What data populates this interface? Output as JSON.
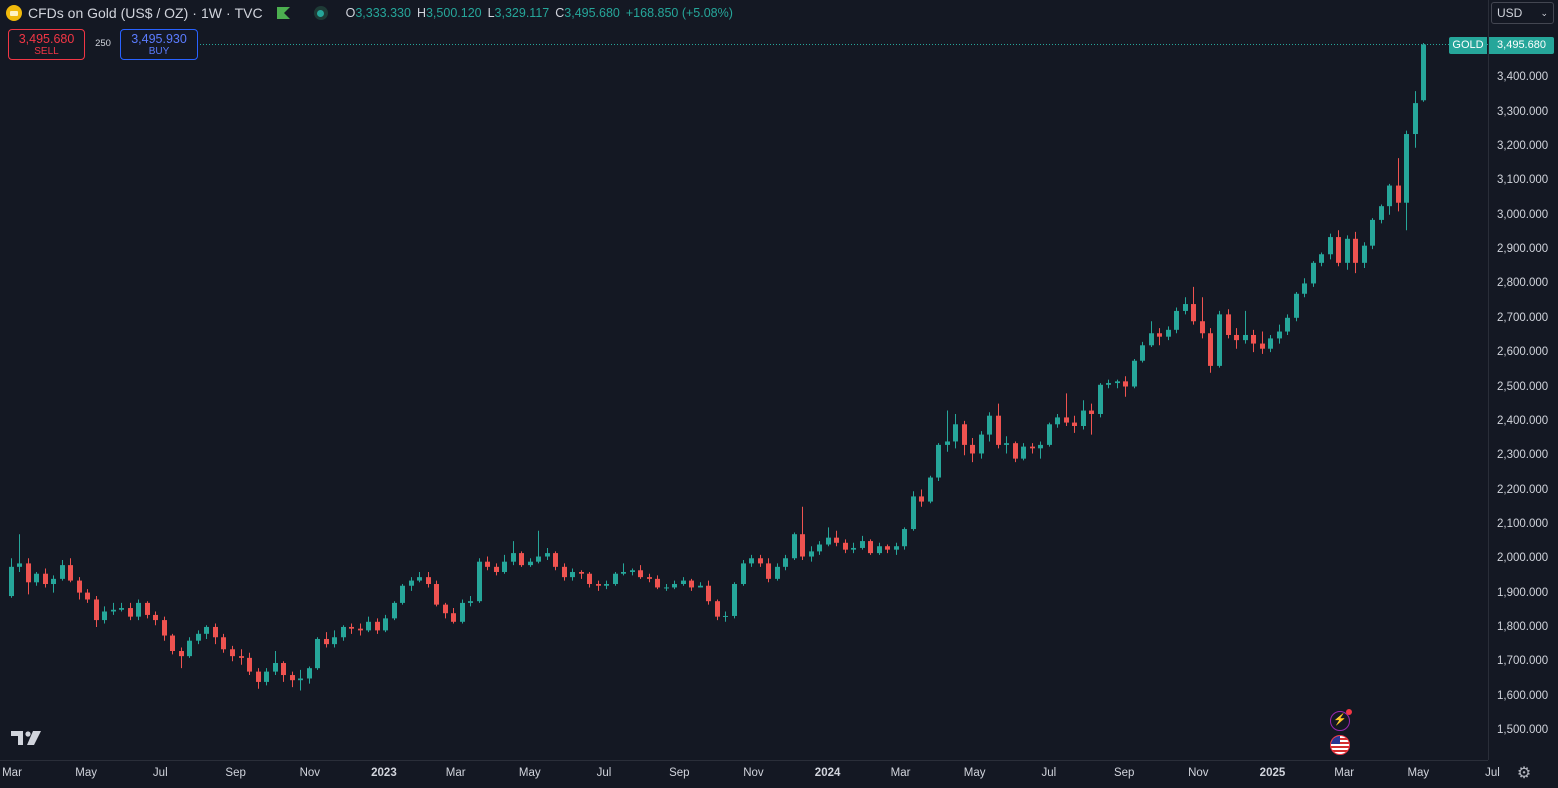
{
  "legend": {
    "title": "CFDs on Gold (US$ / OZ)",
    "interval": "1W",
    "exchange": "TVC",
    "open_label": "O",
    "open": "3,333.330",
    "high_label": "H",
    "high": "3,500.120",
    "low_label": "L",
    "low": "3,329.117",
    "close_label": "C",
    "close": "3,495.680",
    "change": "+168.850 (+5.08%)"
  },
  "trade": {
    "sell_price": "3,495.680",
    "sell_label": "SELL",
    "spread": "250",
    "buy_price": "3,495.930",
    "buy_label": "BUY"
  },
  "currency": "USD",
  "symbol_tag": "GOLD",
  "last_price": "3,495.680",
  "icons": [
    "gold-coin-icon",
    "green-flag-icon",
    "market-open-dot-icon",
    "tradingview-logo",
    "flash-event-icon",
    "us-flag-icon",
    "gear-icon",
    "chevron-down-icon"
  ],
  "colors": {
    "up": "#26a69a",
    "down": "#ef5350",
    "background": "#141823",
    "grid": "#2a2e39",
    "text": "#d1d4dc"
  },
  "chart_data": {
    "type": "candlestick",
    "title": "CFDs on Gold (US$ / OZ)",
    "interval": "1W",
    "ylim": [
      1400,
      3520
    ],
    "y_ticks": [
      "1,500.000",
      "1,600.000",
      "1,700.000",
      "1,800.000",
      "1,900.000",
      "2,000.000",
      "2,100.000",
      "2,200.000",
      "2,300.000",
      "2,400.000",
      "2,500.000",
      "2,600.000",
      "2,700.000",
      "2,800.000",
      "2,900.000",
      "3,000.000",
      "3,100.000",
      "3,200.000",
      "3,300.000",
      "3,400.000"
    ],
    "x_ticks": [
      {
        "label": "Mar",
        "date": "2022-03-01",
        "year": false
      },
      {
        "label": "May",
        "date": "2022-05-01",
        "year": false
      },
      {
        "label": "Jul",
        "date": "2022-07-01",
        "year": false
      },
      {
        "label": "Sep",
        "date": "2022-09-01",
        "year": false
      },
      {
        "label": "Nov",
        "date": "2022-11-01",
        "year": false
      },
      {
        "label": "2023",
        "date": "2023-01-01",
        "year": true
      },
      {
        "label": "Mar",
        "date": "2023-03-01",
        "year": false
      },
      {
        "label": "May",
        "date": "2023-05-01",
        "year": false
      },
      {
        "label": "Jul",
        "date": "2023-07-01",
        "year": false
      },
      {
        "label": "Sep",
        "date": "2023-09-01",
        "year": false
      },
      {
        "label": "Nov",
        "date": "2023-11-01",
        "year": false
      },
      {
        "label": "2024",
        "date": "2024-01-01",
        "year": true
      },
      {
        "label": "Mar",
        "date": "2024-03-01",
        "year": false
      },
      {
        "label": "May",
        "date": "2024-05-01",
        "year": false
      },
      {
        "label": "Jul",
        "date": "2024-07-01",
        "year": false
      },
      {
        "label": "Sep",
        "date": "2024-09-01",
        "year": false
      },
      {
        "label": "Nov",
        "date": "2024-11-01",
        "year": false
      },
      {
        "label": "2025",
        "date": "2025-01-01",
        "year": true
      },
      {
        "label": "Mar",
        "date": "2025-03-01",
        "year": false
      },
      {
        "label": "May",
        "date": "2025-05-01",
        "year": false
      },
      {
        "label": "Jul",
        "date": "2025-07-01",
        "year": false
      }
    ],
    "first_week": "2022-02-28",
    "candles": [
      [
        1890,
        1975,
        2000,
        1885
      ],
      [
        1975,
        1985,
        2070,
        1960
      ],
      [
        1985,
        1930,
        2000,
        1895
      ],
      [
        1930,
        1955,
        1960,
        1920
      ],
      [
        1955,
        1925,
        1970,
        1915
      ],
      [
        1925,
        1940,
        1950,
        1900
      ],
      [
        1940,
        1980,
        1995,
        1935
      ],
      [
        1980,
        1935,
        2000,
        1930
      ],
      [
        1935,
        1900,
        1945,
        1880
      ],
      [
        1900,
        1880,
        1910,
        1870
      ],
      [
        1880,
        1820,
        1890,
        1800
      ],
      [
        1820,
        1845,
        1860,
        1810
      ],
      [
        1845,
        1850,
        1870,
        1835
      ],
      [
        1850,
        1855,
        1870,
        1845
      ],
      [
        1855,
        1830,
        1870,
        1820
      ],
      [
        1830,
        1870,
        1880,
        1820
      ],
      [
        1870,
        1835,
        1875,
        1825
      ],
      [
        1835,
        1820,
        1845,
        1805
      ],
      [
        1820,
        1775,
        1830,
        1760
      ],
      [
        1775,
        1730,
        1780,
        1720
      ],
      [
        1730,
        1715,
        1740,
        1680
      ],
      [
        1715,
        1760,
        1770,
        1710
      ],
      [
        1760,
        1780,
        1790,
        1750
      ],
      [
        1780,
        1800,
        1805,
        1765
      ],
      [
        1800,
        1770,
        1810,
        1750
      ],
      [
        1770,
        1735,
        1780,
        1725
      ],
      [
        1735,
        1715,
        1745,
        1700
      ],
      [
        1715,
        1710,
        1735,
        1690
      ],
      [
        1710,
        1670,
        1725,
        1660
      ],
      [
        1670,
        1640,
        1680,
        1620
      ],
      [
        1640,
        1670,
        1680,
        1630
      ],
      [
        1670,
        1695,
        1730,
        1660
      ],
      [
        1695,
        1660,
        1700,
        1640
      ],
      [
        1660,
        1645,
        1670,
        1625
      ],
      [
        1645,
        1650,
        1675,
        1615
      ],
      [
        1650,
        1680,
        1685,
        1635
      ],
      [
        1680,
        1765,
        1770,
        1675
      ],
      [
        1765,
        1750,
        1785,
        1740
      ],
      [
        1750,
        1770,
        1790,
        1740
      ],
      [
        1770,
        1800,
        1805,
        1760
      ],
      [
        1800,
        1795,
        1810,
        1780
      ],
      [
        1795,
        1790,
        1810,
        1775
      ],
      [
        1790,
        1815,
        1830,
        1785
      ],
      [
        1815,
        1790,
        1825,
        1780
      ],
      [
        1790,
        1825,
        1835,
        1785
      ],
      [
        1825,
        1870,
        1875,
        1820
      ],
      [
        1870,
        1920,
        1925,
        1865
      ],
      [
        1920,
        1935,
        1945,
        1905
      ],
      [
        1935,
        1945,
        1960,
        1930
      ],
      [
        1945,
        1925,
        1960,
        1915
      ],
      [
        1925,
        1865,
        1935,
        1860
      ],
      [
        1865,
        1840,
        1870,
        1825
      ],
      [
        1840,
        1815,
        1855,
        1810
      ],
      [
        1815,
        1870,
        1880,
        1810
      ],
      [
        1870,
        1875,
        1890,
        1860
      ],
      [
        1875,
        1990,
        2000,
        1870
      ],
      [
        1990,
        1975,
        2005,
        1965
      ],
      [
        1975,
        1960,
        1985,
        1950
      ],
      [
        1960,
        1990,
        2010,
        1955
      ],
      [
        1990,
        2015,
        2050,
        1980
      ],
      [
        2015,
        1980,
        2020,
        1975
      ],
      [
        1980,
        1990,
        2000,
        1975
      ],
      [
        1990,
        2005,
        2080,
        1985
      ],
      [
        2005,
        2015,
        2030,
        1995
      ],
      [
        2015,
        1975,
        2020,
        1965
      ],
      [
        1975,
        1945,
        1985,
        1935
      ],
      [
        1945,
        1960,
        1970,
        1935
      ],
      [
        1960,
        1955,
        1965,
        1940
      ],
      [
        1955,
        1925,
        1960,
        1915
      ],
      [
        1925,
        1920,
        1935,
        1905
      ],
      [
        1920,
        1925,
        1935,
        1910
      ],
      [
        1925,
        1955,
        1960,
        1920
      ],
      [
        1955,
        1960,
        1985,
        1950
      ],
      [
        1960,
        1965,
        1970,
        1950
      ],
      [
        1965,
        1945,
        1980,
        1940
      ],
      [
        1945,
        1940,
        1955,
        1930
      ],
      [
        1940,
        1915,
        1950,
        1910
      ],
      [
        1915,
        1915,
        1925,
        1905
      ],
      [
        1915,
        1925,
        1935,
        1910
      ],
      [
        1925,
        1935,
        1945,
        1920
      ],
      [
        1935,
        1915,
        1940,
        1905
      ],
      [
        1915,
        1920,
        1930,
        1915
      ],
      [
        1920,
        1875,
        1935,
        1865
      ],
      [
        1875,
        1830,
        1880,
        1820
      ],
      [
        1830,
        1832,
        1845,
        1815
      ],
      [
        1832,
        1925,
        1930,
        1825
      ],
      [
        1925,
        1985,
        1995,
        1920
      ],
      [
        1985,
        2000,
        2010,
        1975
      ],
      [
        2000,
        1985,
        2010,
        1975
      ],
      [
        1985,
        1940,
        2000,
        1930
      ],
      [
        1940,
        1975,
        1985,
        1935
      ],
      [
        1975,
        2000,
        2010,
        1965
      ],
      [
        2000,
        2070,
        2075,
        1995
      ],
      [
        2070,
        2005,
        2150,
        1995
      ],
      [
        2005,
        2020,
        2035,
        1990
      ],
      [
        2020,
        2040,
        2050,
        2010
      ],
      [
        2040,
        2060,
        2090,
        2035
      ],
      [
        2060,
        2045,
        2080,
        2035
      ],
      [
        2045,
        2025,
        2055,
        2015
      ],
      [
        2025,
        2030,
        2045,
        2015
      ],
      [
        2030,
        2050,
        2065,
        2025
      ],
      [
        2050,
        2015,
        2055,
        2010
      ],
      [
        2015,
        2035,
        2045,
        2010
      ],
      [
        2035,
        2025,
        2040,
        2015
      ],
      [
        2025,
        2035,
        2045,
        2010
      ],
      [
        2035,
        2085,
        2090,
        2025
      ],
      [
        2085,
        2180,
        2195,
        2080
      ],
      [
        2180,
        2165,
        2200,
        2150
      ],
      [
        2165,
        2235,
        2240,
        2160
      ],
      [
        2235,
        2330,
        2335,
        2225
      ],
      [
        2330,
        2340,
        2430,
        2310
      ],
      [
        2340,
        2390,
        2420,
        2320
      ],
      [
        2390,
        2330,
        2400,
        2300
      ],
      [
        2330,
        2305,
        2350,
        2280
      ],
      [
        2305,
        2360,
        2370,
        2290
      ],
      [
        2360,
        2415,
        2425,
        2340
      ],
      [
        2415,
        2330,
        2450,
        2320
      ],
      [
        2330,
        2335,
        2355,
        2305
      ],
      [
        2335,
        2290,
        2340,
        2280
      ],
      [
        2290,
        2325,
        2335,
        2285
      ],
      [
        2325,
        2320,
        2335,
        2305
      ],
      [
        2320,
        2330,
        2340,
        2290
      ],
      [
        2330,
        2390,
        2395,
        2325
      ],
      [
        2390,
        2410,
        2420,
        2380
      ],
      [
        2410,
        2395,
        2480,
        2385
      ],
      [
        2395,
        2385,
        2415,
        2365
      ],
      [
        2385,
        2430,
        2460,
        2375
      ],
      [
        2430,
        2420,
        2450,
        2360
      ],
      [
        2420,
        2505,
        2510,
        2410
      ],
      [
        2505,
        2510,
        2520,
        2495
      ],
      [
        2510,
        2515,
        2520,
        2495
      ],
      [
        2515,
        2500,
        2530,
        2470
      ],
      [
        2500,
        2575,
        2580,
        2495
      ],
      [
        2575,
        2620,
        2630,
        2570
      ],
      [
        2620,
        2655,
        2690,
        2615
      ],
      [
        2655,
        2645,
        2670,
        2620
      ],
      [
        2645,
        2665,
        2675,
        2635
      ],
      [
        2665,
        2720,
        2730,
        2655
      ],
      [
        2720,
        2740,
        2760,
        2710
      ],
      [
        2740,
        2690,
        2790,
        2680
      ],
      [
        2690,
        2655,
        2760,
        2640
      ],
      [
        2655,
        2560,
        2670,
        2540
      ],
      [
        2560,
        2710,
        2720,
        2555
      ],
      [
        2710,
        2650,
        2725,
        2640
      ],
      [
        2650,
        2635,
        2670,
        2610
      ],
      [
        2635,
        2650,
        2720,
        2625
      ],
      [
        2650,
        2625,
        2665,
        2600
      ],
      [
        2625,
        2610,
        2660,
        2595
      ],
      [
        2610,
        2640,
        2650,
        2600
      ],
      [
        2640,
        2660,
        2680,
        2625
      ],
      [
        2660,
        2700,
        2710,
        2650
      ],
      [
        2700,
        2770,
        2775,
        2690
      ],
      [
        2770,
        2800,
        2815,
        2760
      ],
      [
        2800,
        2860,
        2865,
        2790
      ],
      [
        2860,
        2885,
        2890,
        2850
      ],
      [
        2885,
        2935,
        2945,
        2870
      ],
      [
        2935,
        2860,
        2955,
        2850
      ],
      [
        2860,
        2930,
        2940,
        2840
      ],
      [
        2930,
        2860,
        2950,
        2830
      ],
      [
        2860,
        2910,
        2920,
        2845
      ],
      [
        2910,
        2985,
        2990,
        2900
      ],
      [
        2985,
        3025,
        3030,
        2975
      ],
      [
        3025,
        3085,
        3090,
        3000
      ],
      [
        3085,
        3035,
        3165,
        3010
      ],
      [
        3035,
        3235,
        3245,
        2955
      ],
      [
        3235,
        3325,
        3360,
        3195
      ],
      [
        3333.33,
        3495.68,
        3500.12,
        3329.117
      ]
    ]
  }
}
